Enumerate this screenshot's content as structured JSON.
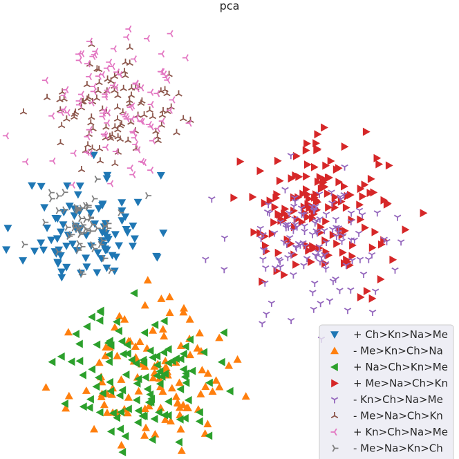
{
  "chart_data": {
    "type": "scatter",
    "title": "pca",
    "xlabel": "",
    "ylabel": "",
    "grid": false,
    "axes_visible": false,
    "legend_position": "lower-right",
    "xlim": [
      -3.0,
      3.6
    ],
    "ylim": [
      -2.8,
      3.05
    ],
    "series": [
      {
        "name": "+ Ch>Kn>Na>Me",
        "marker": "triangle-down",
        "color": "#1f77b4",
        "center": [
          -1.75,
          0.2
        ],
        "spread": [
          0.46,
          0.36
        ],
        "n": 90,
        "seed": 11
      },
      {
        "name": "- Me>Kn>Ch>Na",
        "marker": "triangle-up",
        "color": "#ff7f0e",
        "center": [
          -0.85,
          -1.75
        ],
        "spread": [
          0.55,
          0.42
        ],
        "n": 110,
        "seed": 23
      },
      {
        "name": "+ Na>Ch>Kn>Me",
        "marker": "triangle-left",
        "color": "#2ca02c",
        "center": [
          -0.95,
          -1.72
        ],
        "spread": [
          0.55,
          0.45
        ],
        "n": 110,
        "seed": 37
      },
      {
        "name": "+ Me>Na>Ch>Kn",
        "marker": "triangle-right",
        "color": "#d62728",
        "center": [
          1.65,
          0.45
        ],
        "spread": [
          0.55,
          0.45
        ],
        "n": 150,
        "seed": 41
      },
      {
        "name": "- Kn>Ch>Na>Me",
        "marker": "tri-down",
        "color": "#9467bd",
        "center": [
          1.55,
          0.05
        ],
        "spread": [
          0.6,
          0.45
        ],
        "n": 130,
        "seed": 53
      },
      {
        "name": "- Me>Na>Ch>Kn",
        "marker": "tri-up",
        "color": "#8c564b",
        "center": [
          -1.35,
          1.7
        ],
        "spread": [
          0.45,
          0.35
        ],
        "n": 100,
        "seed": 67
      },
      {
        "name": "+ Kn>Ch>Na>Me",
        "marker": "tri-left",
        "color": "#e377c2",
        "center": [
          -1.35,
          1.9
        ],
        "spread": [
          0.5,
          0.45
        ],
        "n": 100,
        "seed": 79
      },
      {
        "name": "- Me>Na>Kn>Ch",
        "marker": "tri-right",
        "color": "#7f7f7f",
        "center": [
          -1.95,
          0.25
        ],
        "spread": [
          0.35,
          0.3
        ],
        "n": 55,
        "seed": 97
      }
    ]
  }
}
